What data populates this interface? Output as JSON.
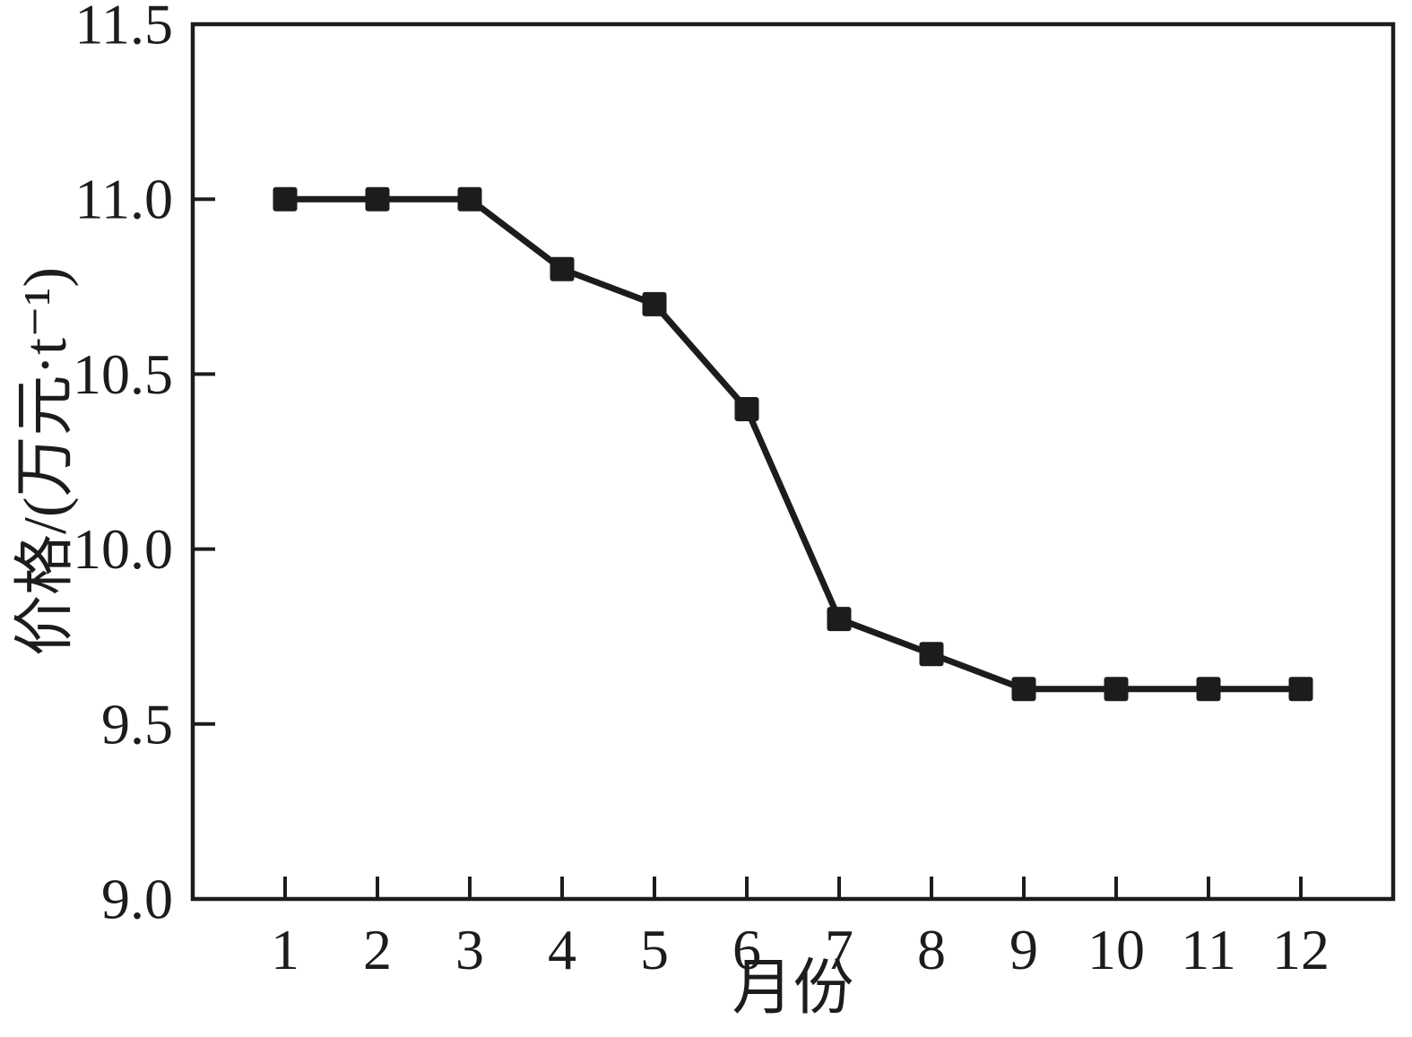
{
  "figure": {
    "background": "#ffffff",
    "ink_color": "#1e1b1c"
  },
  "chart_data": {
    "type": "line",
    "title": "",
    "xlabel": "月份",
    "ylabel": "价格/(万元·t⁻¹)",
    "x": [
      1,
      2,
      3,
      4,
      5,
      6,
      7,
      8,
      9,
      10,
      11,
      12
    ],
    "series": [
      {
        "name": "价格",
        "values": [
          11.0,
          11.0,
          11.0,
          10.8,
          10.7,
          10.4,
          9.8,
          9.7,
          9.6,
          9.6,
          9.6,
          9.6
        ],
        "color": "#1e1b1c",
        "marker": "filled-square",
        "line_width": 7,
        "marker_size": 27
      }
    ],
    "xlim": [
      0,
      13
    ],
    "ylim": [
      9.0,
      11.5
    ],
    "xticks": [
      1,
      2,
      3,
      4,
      5,
      6,
      7,
      8,
      9,
      10,
      11,
      12
    ],
    "xtick_labels": [
      "1",
      "2",
      "3",
      "4",
      "5",
      "6",
      "7",
      "8",
      "9",
      "10",
      "11",
      "12"
    ],
    "yticks": [
      9.0,
      9.5,
      10.0,
      10.5,
      11.0,
      11.5
    ],
    "ytick_labels": [
      "9.0",
      "9.5",
      "10.0",
      "10.5",
      "11.0",
      "11.5"
    ],
    "grid": false,
    "legend": "none",
    "frame": "box",
    "tick_direction": "in"
  }
}
